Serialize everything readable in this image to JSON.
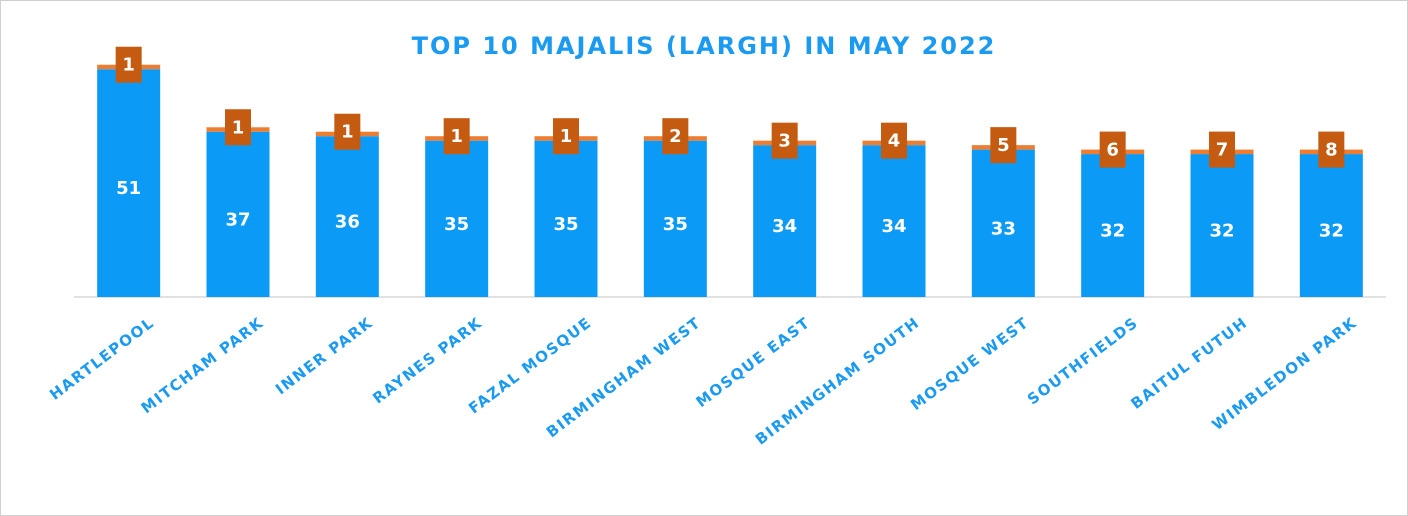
{
  "chart_data": {
    "type": "bar",
    "title": "TOP 10 MAJALIS (LARGH) IN MAY 2022",
    "categories": [
      "HARTLEPOOL",
      "MITCHAM PARK",
      "INNER PARK",
      "RAYNES PARK",
      "FAZAL MOSQUE",
      "BIRMINGHAM WEST",
      "MOSQUE EAST",
      "BIRMINGHAM SOUTH",
      "MOSQUE WEST",
      "SOUTHFIELDS",
      "BAITUL FUTUH",
      "WIMBLEDON PARK"
    ],
    "series": [
      {
        "color": "#0b9bf7",
        "values": [
          51,
          37,
          36,
          35,
          35,
          35,
          34,
          34,
          33,
          32,
          32,
          32
        ]
      },
      {
        "color": "#ed7d31",
        "values": [
          1,
          1,
          1,
          1,
          1,
          1,
          1,
          1,
          1,
          1,
          1,
          1
        ]
      }
    ],
    "ranks": [
      1,
      1,
      1,
      1,
      1,
      2,
      3,
      4,
      5,
      6,
      7,
      8
    ],
    "rank_color": "#c55a11",
    "ylim": [
      0,
      60
    ],
    "stacked": true
  }
}
